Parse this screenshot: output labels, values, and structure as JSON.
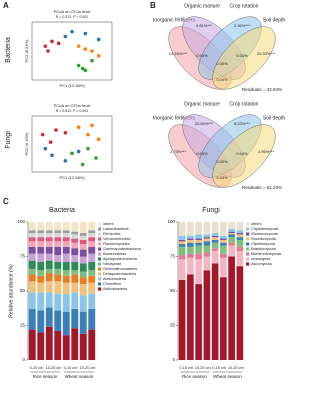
{
  "panel_labels": [
    "A",
    "B",
    "C"
  ],
  "row_labels": [
    "Bacteria",
    "Fungi"
  ],
  "chart_data": [
    {
      "type": "scatter",
      "title": "PCoA on OTUs level",
      "subtitle": "R = 0.374, P = 0.001",
      "xlabel": "PC1 (12.36%)",
      "ylabel": "PC2 (8.51%)",
      "xlim": [
        -0.3,
        0.3
      ],
      "ylim": [
        -0.3,
        0.3
      ],
      "series": [
        {
          "color": "#d62728",
          "x": [
            -0.2,
            -0.15,
            -0.18,
            -0.1
          ],
          "values": [
            0.05,
            0.1,
            0.0,
            0.08
          ]
        },
        {
          "color": "#2ca02c",
          "x": [
            0.05,
            0.1,
            0.15,
            0.08
          ],
          "values": [
            -0.15,
            -0.2,
            -0.1,
            -0.18
          ]
        },
        {
          "color": "#1f77b4",
          "x": [
            -0.05,
            0.0,
            0.1,
            0.2
          ],
          "values": [
            0.15,
            0.2,
            0.18,
            0.12
          ]
        },
        {
          "color": "#ff7f0e",
          "x": [
            0.15,
            0.2,
            0.05,
            0.1
          ],
          "values": [
            0.0,
            -0.05,
            0.05,
            0.02
          ]
        }
      ]
    },
    {
      "type": "scatter",
      "title": "PCoA on OTUs level",
      "subtitle": "R = 0.512, P = 0.001",
      "xlabel": "PC1 (12.58%)",
      "ylabel": "PC2 (9.16%)",
      "xlim": [
        -0.3,
        0.3
      ],
      "ylim": [
        -0.3,
        0.3
      ],
      "series": [
        {
          "color": "#d62728",
          "x": [
            -0.22,
            -0.12,
            -0.16,
            -0.05
          ],
          "values": [
            0.1,
            0.15,
            0.02,
            0.12
          ]
        },
        {
          "color": "#2ca02c",
          "x": [
            0.0,
            0.08,
            0.18,
            0.12
          ],
          "values": [
            -0.1,
            -0.22,
            -0.15,
            -0.05
          ]
        },
        {
          "color": "#1f77b4",
          "x": [
            -0.15,
            -0.05,
            0.05,
            -0.2
          ],
          "values": [
            -0.12,
            -0.18,
            -0.08,
            -0.05
          ]
        },
        {
          "color": "#ff7f0e",
          "x": [
            0.12,
            0.2,
            0.05,
            0.15
          ],
          "values": [
            0.1,
            0.05,
            0.18,
            0.2
          ]
        }
      ]
    },
    {
      "type": "venn",
      "sets": [
        "Inorganic fertilizers",
        "Organic manure",
        "Crop rotation",
        "Soil depth"
      ],
      "colors": [
        "#f3a2a8",
        "#c7a8e2",
        "#8fc3ea",
        "#f6dd7a"
      ],
      "values": [
        4.81,
        2.36,
        12.26,
        20.33,
        0.04,
        0.04,
        0.0,
        0.04
      ],
      "value_labels": [
        "4.81%***",
        "2.36%***",
        "12.26%***",
        "20.33%***",
        "0.04%",
        "0.04%",
        "0.00%",
        "0.04%"
      ],
      "annotation": "Residuals = 42.94%"
    },
    {
      "type": "venn",
      "sets": [
        "Inorganic fertilizers",
        "Organic manure",
        "Crop rotation",
        "Soil depth"
      ],
      "colors": [
        "#f3a2a8",
        "#c7a8e2",
        "#8fc3ea",
        "#f6dd7a"
      ],
      "values": [
        20.5,
        8.23,
        2.73,
        4.95,
        0.04,
        0.04,
        0.0,
        0.03
      ],
      "value_labels": [
        "20.50%***",
        "8.23%***",
        "2.73%***",
        "4.95%***",
        "0.04%",
        "0.04%",
        "0.00%",
        "0.03%"
      ],
      "annotation": "Residuals = 61.23%"
    },
    {
      "type": "bar",
      "title": "Bacteria",
      "ylabel": "Relative abundance (%)",
      "ylim": [
        0,
        100
      ],
      "yticks": [
        0,
        25,
        50,
        75,
        100
      ],
      "group_labels": [
        "0-10 cm",
        "10-20 cm",
        "0-10 cm",
        "10-20 cm"
      ],
      "season_labels": [
        "Rice season",
        "Wheat season"
      ],
      "series": [
        {
          "name": "Actinobacteria",
          "color": "#a3172a",
          "values": [
            22,
            20,
            24,
            21,
            18,
            23,
            19,
            22
          ]
        },
        {
          "name": "Chloroflexi",
          "color": "#3a7fb8",
          "values": [
            15,
            16,
            14,
            15,
            17,
            14,
            16,
            15
          ]
        },
        {
          "name": "Acidobacteria",
          "color": "#8ac6e8",
          "values": [
            12,
            13,
            11,
            12,
            13,
            12,
            12,
            11
          ]
        },
        {
          "name": "Deltaproteobacteria",
          "color": "#f1c27d",
          "values": [
            8,
            7,
            8,
            9,
            8,
            7,
            8,
            8
          ]
        },
        {
          "name": "Gemmatimonadetes",
          "color": "#e67e22",
          "values": [
            5,
            5,
            6,
            5,
            5,
            6,
            5,
            5
          ]
        },
        {
          "name": "Nitrospirae",
          "color": "#7fbf7f",
          "values": [
            4,
            4,
            3,
            4,
            4,
            3,
            4,
            4
          ]
        },
        {
          "name": "Alphaproteobacteria",
          "color": "#2e8b57",
          "values": [
            6,
            6,
            6,
            5,
            6,
            6,
            6,
            6
          ]
        },
        {
          "name": "Bacteroidetes",
          "color": "#c8a2d8",
          "values": [
            5,
            6,
            5,
            5,
            6,
            5,
            5,
            6
          ]
        },
        {
          "name": "Gammaproteobacteria",
          "color": "#7b4fa0",
          "values": [
            5,
            5,
            5,
            6,
            5,
            5,
            5,
            5
          ]
        },
        {
          "name": "Planctomycetes",
          "color": "#f4a6b8",
          "values": [
            4,
            4,
            4,
            4,
            4,
            4,
            4,
            4
          ]
        },
        {
          "name": "Verrucomicrobia",
          "color": "#e05a7a",
          "values": [
            3,
            3,
            3,
            3,
            3,
            3,
            3,
            3
          ]
        },
        {
          "name": "Firmicutes",
          "color": "#d9d9d9",
          "values": [
            3,
            3,
            3,
            3,
            3,
            3,
            3,
            3
          ]
        },
        {
          "name": "Latescibacteria",
          "color": "#9e9e9e",
          "values": [
            2,
            2,
            2,
            2,
            2,
            2,
            2,
            2
          ]
        },
        {
          "name": "others",
          "color": "#f2e6c9",
          "values": [
            6,
            6,
            6,
            6,
            6,
            7,
            8,
            6
          ]
        }
      ]
    },
    {
      "type": "bar",
      "title": "Fungi",
      "ylim": [
        0,
        100
      ],
      "yticks": [
        0,
        25,
        50,
        75,
        100
      ],
      "group_labels": [
        "0-10 cm",
        "10-20 cm",
        "0-10 cm",
        "10-20 cm"
      ],
      "season_labels": [
        "Rice season",
        "Wheat season"
      ],
      "series": [
        {
          "name": "Ascomycota",
          "color": "#a3172a",
          "values": [
            58,
            62,
            55,
            65,
            70,
            60,
            75,
            68
          ]
        },
        {
          "name": "unassigned",
          "color": "#f3b6c1",
          "values": [
            15,
            12,
            18,
            10,
            9,
            14,
            8,
            11
          ]
        },
        {
          "name": "Mortierellomycota",
          "color": "#e57a94",
          "values": [
            3,
            3,
            4,
            3,
            2,
            3,
            2,
            3
          ]
        },
        {
          "name": "Basidiomycota",
          "color": "#7fbf7f",
          "values": [
            6,
            5,
            6,
            5,
            4,
            6,
            4,
            5
          ]
        },
        {
          "name": "Olpidiomycota",
          "color": "#3a7fb8",
          "values": [
            2,
            3,
            2,
            3,
            2,
            2,
            2,
            2
          ]
        },
        {
          "name": "Rozellomycota",
          "color": "#f1c27d",
          "values": [
            2,
            2,
            2,
            2,
            2,
            2,
            1,
            2
          ]
        },
        {
          "name": "Glomeromycota",
          "color": "#7b4fa0",
          "values": [
            1,
            1,
            1,
            1,
            1,
            1,
            1,
            1
          ]
        },
        {
          "name": "Chytridiomycota",
          "color": "#8ac6e8",
          "values": [
            3,
            2,
            3,
            2,
            2,
            2,
            2,
            2
          ]
        },
        {
          "name": "others",
          "color": "#e8e0d0",
          "values": [
            10,
            10,
            9,
            9,
            8,
            10,
            5,
            6
          ]
        }
      ]
    }
  ]
}
